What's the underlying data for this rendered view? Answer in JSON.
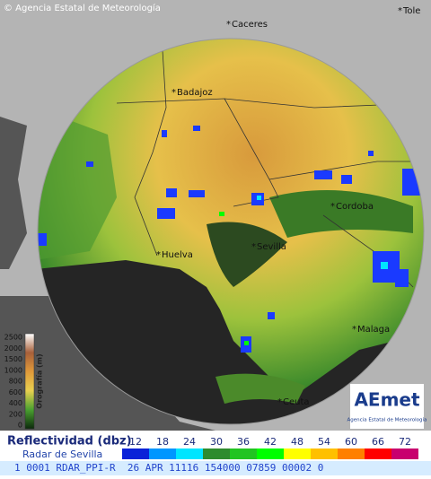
{
  "credit": "© Agencia Estatal de Meteorología",
  "cities": [
    {
      "label": "Caceres"
    },
    {
      "label": "Tole"
    },
    {
      "label": "Badajoz"
    },
    {
      "label": "Cordoba"
    },
    {
      "label": "Sevilla"
    },
    {
      "label": "Huelva"
    },
    {
      "label": "Malaga"
    },
    {
      "label": "Ceuta"
    }
  ],
  "orography": {
    "title": "Orografía (m)",
    "ticks": [
      "2500",
      "2000",
      "1500",
      "1000",
      "800",
      "600",
      "400",
      "200",
      "0"
    ]
  },
  "legend": {
    "title": "Reflectividad (dbz)",
    "subtitle": "Radar de Sevilla",
    "items": [
      {
        "label": 12,
        "color": "#0a22d8"
      },
      {
        "label": 18,
        "color": "#0096ff"
      },
      {
        "label": 24,
        "color": "#00e5ff"
      },
      {
        "label": 30,
        "color": "#2e8b2e"
      },
      {
        "label": 36,
        "color": "#22c422"
      },
      {
        "label": 42,
        "color": "#00ff00"
      },
      {
        "label": 48,
        "color": "#ffff00"
      },
      {
        "label": 54,
        "color": "#ffc000"
      },
      {
        "label": 60,
        "color": "#ff8000"
      },
      {
        "label": 66,
        "color": "#ff0000"
      },
      {
        "label": 72,
        "color": "#c8006e"
      }
    ]
  },
  "logo": {
    "name": "AEmet",
    "text": "Agencia Estatal de Meteorología"
  },
  "status_bar": "1 0001 RDAR_PPI-R  26 APR 11116 154000 07859 00002 0"
}
